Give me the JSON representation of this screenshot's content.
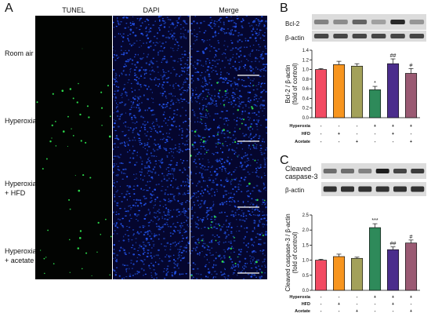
{
  "panel_a": {
    "letter": "A",
    "columns": [
      "TUNEL",
      "DAPI",
      "Merge"
    ],
    "rows": [
      {
        "label": "Room air",
        "tunel_intensity": 0.0
      },
      {
        "label": "Hyperoxia",
        "tunel_intensity": 1.0
      },
      {
        "label": "Hyperoxia\n+ HFD",
        "tunel_intensity": 0.3
      },
      {
        "label": "Hyperoxia\n+ acetate",
        "tunel_intensity": 0.7
      }
    ]
  },
  "panel_b": {
    "letter": "B",
    "blot_labels": [
      "Bcl-2",
      "β-actin"
    ]
  },
  "panel_c": {
    "letter": "C",
    "blot_labels": [
      "Cleaved\ncaspase-3",
      "β-actin"
    ]
  },
  "condition_labels": [
    "Hyperoxia",
    "HFD",
    "Acetate"
  ],
  "chart_data": [
    {
      "type": "bar",
      "panel": "B",
      "ylabel": "Bcl-2 / β-actin\n(fold of control)",
      "ylim": [
        0,
        1.4
      ],
      "yticks": [
        "0.0",
        "0.2",
        "0.4",
        "0.6",
        "0.8",
        "1.0",
        "1.2",
        "1.4"
      ],
      "values": [
        1.0,
        1.1,
        1.07,
        0.58,
        1.12,
        0.92
      ],
      "errors": [
        0.02,
        0.07,
        0.05,
        0.07,
        0.1,
        0.1
      ],
      "colors": [
        "#f24a62",
        "#f7951f",
        "#a3a15a",
        "#2e8a5a",
        "#4b2d8c",
        "#9a5a73"
      ],
      "annotations": [
        "",
        "",
        "",
        "*",
        "##",
        "#"
      ],
      "conditions": {
        "Hyperoxia": [
          "-",
          "-",
          "-",
          "+",
          "+",
          "+"
        ],
        "HFD": [
          "-",
          "+",
          "-",
          "-",
          "+",
          "-"
        ],
        "Acetate": [
          "-",
          "-",
          "+",
          "-",
          "-",
          "+"
        ]
      }
    },
    {
      "type": "bar",
      "panel": "C",
      "ylabel": "Cleaved caspase-3 / β-actin\n(fold of control)",
      "ylim": [
        0,
        2.5
      ],
      "yticks": [
        "0.0",
        "0.5",
        "1.0",
        "1.5",
        "2.0",
        "2.5"
      ],
      "values": [
        1.0,
        1.12,
        1.06,
        2.08,
        1.35,
        1.57
      ],
      "errors": [
        0.03,
        0.08,
        0.04,
        0.13,
        0.09,
        0.1
      ],
      "colors": [
        "#f24a62",
        "#f7951f",
        "#a3a15a",
        "#2e8a5a",
        "#4b2d8c",
        "#9a5a73"
      ],
      "annotations": [
        "",
        "",
        "",
        "***",
        "##",
        "#"
      ],
      "conditions": {
        "Hyperoxia": [
          "-",
          "-",
          "-",
          "+",
          "+",
          "+"
        ],
        "HFD": [
          "-",
          "+",
          "-",
          "-",
          "+",
          "-"
        ],
        "Acetate": [
          "-",
          "-",
          "+",
          "-",
          "-",
          "+"
        ]
      }
    }
  ]
}
